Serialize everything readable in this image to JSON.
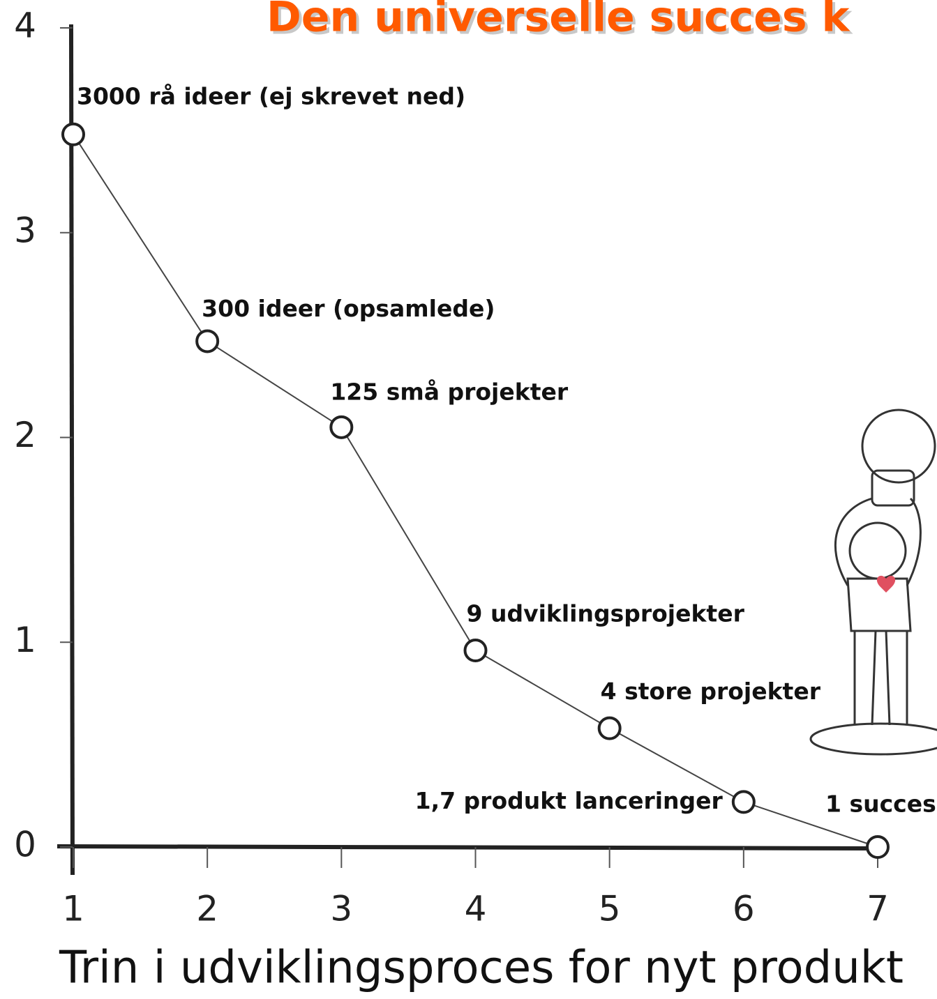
{
  "chart_data": {
    "type": "line",
    "title": "Den universelle succes k",
    "x_label": "Trin i udviklingsproces for nyt produkt",
    "x": [
      1,
      2,
      3,
      4,
      5,
      6,
      7
    ],
    "values": [
      3.48,
      2.47,
      2.05,
      0.96,
      0.58,
      0.22,
      0
    ],
    "point_labels": [
      "3000 rå ideer (ej skrevet ned)",
      "300 ideer (opsamlede)",
      "125 små projekter",
      "9 udviklingsprojekter",
      "4 store projekter",
      "1,7 produkt lanceringer",
      "1 succes"
    ],
    "color": "#444444",
    "title_color": "#ff5a00",
    "xlim": [
      1,
      7
    ],
    "xticks": [
      1,
      2,
      3,
      4,
      5,
      6,
      7
    ],
    "ylim": [
      0,
      4
    ],
    "yticks": [
      0,
      1,
      2,
      3,
      4
    ]
  }
}
